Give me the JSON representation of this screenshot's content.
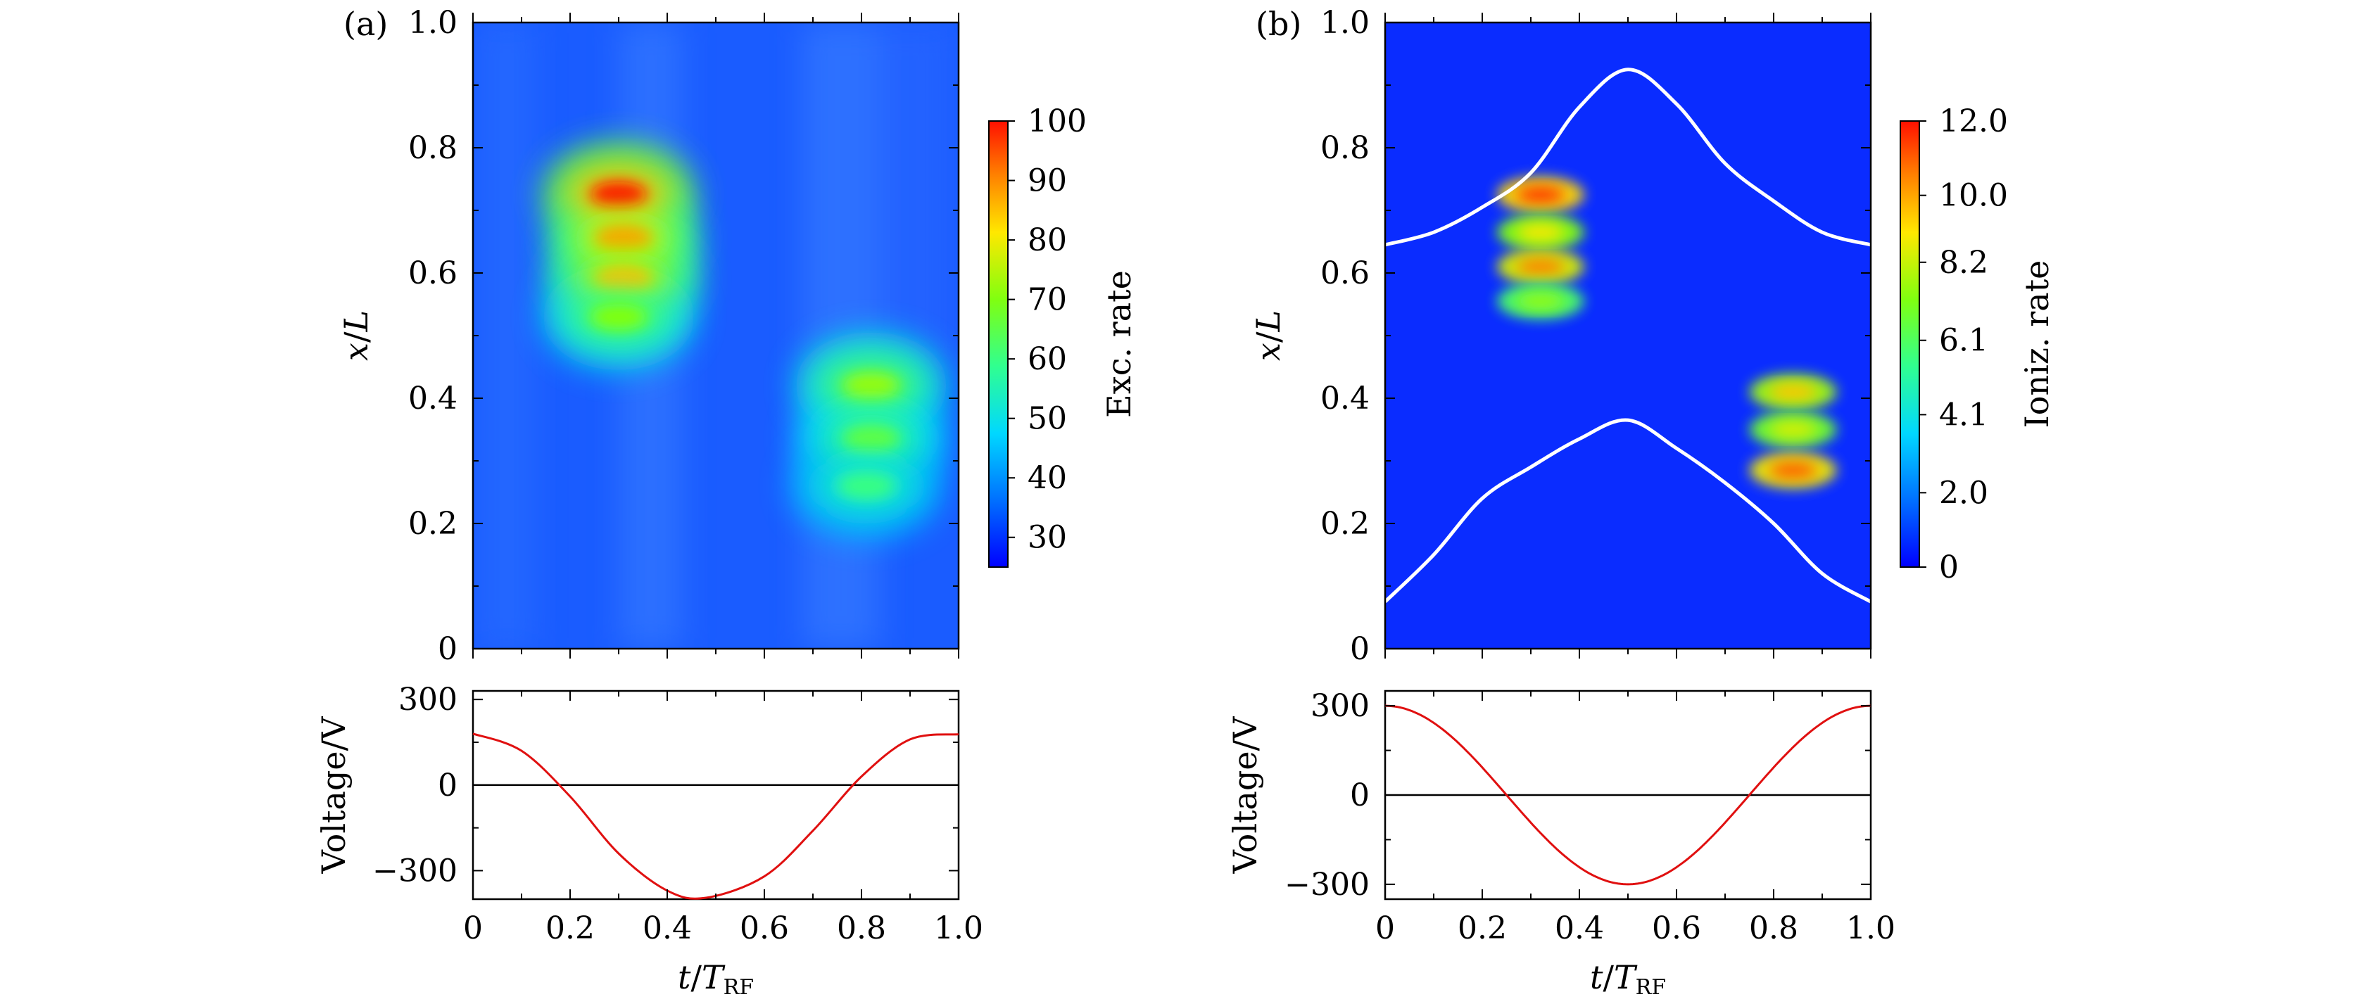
{
  "panels": [
    {
      "label": "(a)",
      "heatmap": {
        "yticks": [
          "0",
          "0.2",
          "0.4",
          "0.6",
          "0.8",
          "1.0"
        ],
        "ylabel_main": "x",
        "ylabel_sep": "/",
        "ylabel_tail": "L",
        "colorbar_ticks": [
          "30",
          "40",
          "50",
          "60",
          "70",
          "80",
          "90",
          "100"
        ],
        "colorbar_label": "Exc. rate"
      },
      "voltage": {
        "yticks": [
          "300",
          "0",
          "−300"
        ],
        "ylabel": "Voltage/V"
      },
      "xticks": [
        "0",
        "0.2",
        "0.4",
        "0.6",
        "0.8",
        "1.0"
      ],
      "xlabel_main": "t",
      "xlabel_sep": "/",
      "xlabel_T": "T",
      "xlabel_sub": "RF"
    },
    {
      "label": "(b)",
      "heatmap": {
        "yticks": [
          "0",
          "0.2",
          "0.4",
          "0.6",
          "0.8",
          "1.0"
        ],
        "ylabel_main": "x",
        "ylabel_sep": "/",
        "ylabel_tail": "L",
        "colorbar_ticks": [
          "0",
          "2.0",
          "4.1",
          "6.1",
          "8.2",
          "10.0",
          "12.0"
        ],
        "colorbar_label": "Ioniz. rate"
      },
      "voltage": {
        "yticks": [
          "300",
          "0",
          "−300"
        ],
        "ylabel": "Voltage/V"
      },
      "xticks": [
        "0",
        "0.2",
        "0.4",
        "0.6",
        "0.8",
        "1.0"
      ],
      "xlabel_main": "t",
      "xlabel_sep": "/",
      "xlabel_T": "T",
      "xlabel_sub": "RF"
    }
  ],
  "colors": {
    "background_blue": "#0a2cff",
    "voltage_line": "#e01010",
    "sheath_line": "#ffffff",
    "zero_line": "#000000"
  },
  "chart_data": [
    {
      "type": "heatmap",
      "panel": "(a)",
      "x_range": [
        0,
        1.0
      ],
      "y_range": [
        0,
        1.0
      ],
      "z_range": [
        25,
        100
      ],
      "colorbar_label": "Exc. rate",
      "background_value": 30,
      "hotspots": [
        {
          "t": 0.3,
          "x": 0.725,
          "value": 100
        },
        {
          "t": 0.31,
          "x": 0.655,
          "value": 88
        },
        {
          "t": 0.31,
          "x": 0.59,
          "value": 85
        },
        {
          "t": 0.3,
          "x": 0.53,
          "value": 70
        },
        {
          "t": 0.82,
          "x": 0.42,
          "value": 72
        },
        {
          "t": 0.82,
          "x": 0.335,
          "value": 66
        },
        {
          "t": 0.81,
          "x": 0.26,
          "value": 60
        }
      ]
    },
    {
      "type": "line",
      "panel": "(a)",
      "ylabel": "Voltage/V",
      "xlim": [
        0,
        1.0
      ],
      "ylim": [
        -400,
        330
      ],
      "x": [
        0,
        0.1,
        0.2,
        0.3,
        0.4,
        0.48,
        0.6,
        0.7,
        0.8,
        0.9,
        1.0
      ],
      "y": [
        180,
        120,
        -40,
        -240,
        -370,
        -395,
        -320,
        -160,
        30,
        160,
        178
      ]
    },
    {
      "type": "heatmap",
      "panel": "(b)",
      "x_range": [
        0,
        1.0
      ],
      "y_range": [
        0,
        1.0
      ],
      "z_range": [
        0,
        12.0
      ],
      "colorbar_label": "Ioniz. rate",
      "background_value": 0,
      "hotspots": [
        {
          "t": 0.32,
          "x": 0.725,
          "value": 11.5
        },
        {
          "t": 0.32,
          "x": 0.665,
          "value": 9.0
        },
        {
          "t": 0.32,
          "x": 0.61,
          "value": 10.5
        },
        {
          "t": 0.32,
          "x": 0.555,
          "value": 7.5
        },
        {
          "t": 0.84,
          "x": 0.41,
          "value": 9.5
        },
        {
          "t": 0.84,
          "x": 0.35,
          "value": 8.5
        },
        {
          "t": 0.84,
          "x": 0.285,
          "value": 11.0
        }
      ],
      "sheath_edges": [
        {
          "t": [
            0,
            0.1,
            0.2,
            0.3,
            0.4,
            0.5,
            0.6,
            0.7,
            0.8,
            0.9,
            1.0
          ],
          "x": [
            0.645,
            0.665,
            0.705,
            0.76,
            0.865,
            0.925,
            0.87,
            0.775,
            0.715,
            0.665,
            0.645
          ]
        },
        {
          "t": [
            0,
            0.1,
            0.2,
            0.3,
            0.4,
            0.5,
            0.6,
            0.7,
            0.8,
            0.9,
            1.0
          ],
          "x": [
            0.075,
            0.15,
            0.24,
            0.29,
            0.335,
            0.365,
            0.32,
            0.265,
            0.2,
            0.12,
            0.075
          ]
        }
      ]
    },
    {
      "type": "line",
      "panel": "(b)",
      "ylabel": "Voltage/V",
      "xlim": [
        0,
        1.0
      ],
      "ylim": [
        -350,
        350
      ],
      "function": "300*cos(2*pi*t)",
      "amplitude": 300
    }
  ]
}
